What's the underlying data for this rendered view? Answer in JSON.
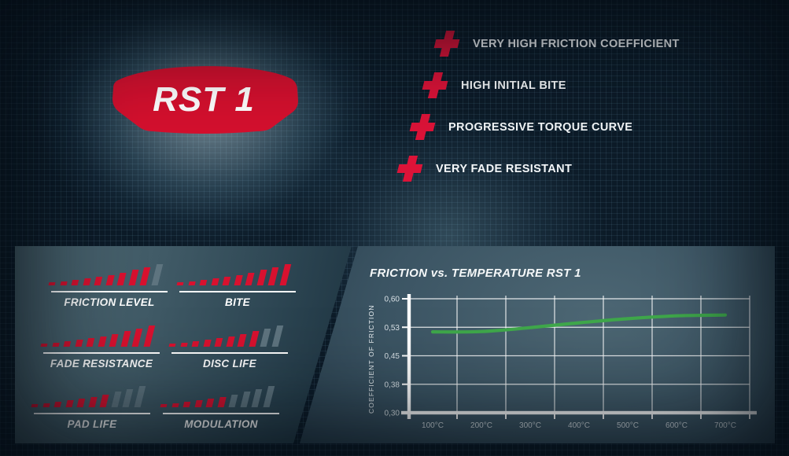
{
  "product": {
    "name": "RST 1"
  },
  "features": [
    {
      "icon": "plus-icon",
      "label": "VERY HIGH FRICTION COEFFICIENT"
    },
    {
      "icon": "plus-icon",
      "label": "HIGH INITIAL BITE"
    },
    {
      "icon": "plus-icon",
      "label": "PROGRESSIVE TORQUE CURVE"
    },
    {
      "icon": "plus-icon",
      "label": "VERY FADE RESISTANT"
    }
  ],
  "ratings": {
    "max": 10,
    "items": [
      {
        "label": "FRICTION LEVEL",
        "value": 9
      },
      {
        "label": "BITE",
        "value": 10
      },
      {
        "label": "FADE RESISTANCE",
        "value": 10
      },
      {
        "label": "DISC LIFE",
        "value": 8
      },
      {
        "label": "PAD LIFE",
        "value": 7
      },
      {
        "label": "MODULATION",
        "value": 6
      }
    ]
  },
  "chart_data": {
    "type": "line",
    "title": "FRICTION vs. TEMPERATURE RST 1",
    "ylabel": "COEFFICIENT OF FRICTION",
    "xlabel": "",
    "x": [
      100,
      200,
      300,
      400,
      500,
      600,
      700
    ],
    "x_tick_labels": [
      "100°C",
      "200°C",
      "300°C",
      "400°C",
      "500°C",
      "600°C",
      "700°C"
    ],
    "series": [
      {
        "name": "RST 1",
        "color": "#3fa84b",
        "values": [
          0.517,
          0.518,
          0.529,
          0.541,
          0.551,
          0.558,
          0.56
        ]
      }
    ],
    "ylim": [
      0.3,
      0.6
    ],
    "y_ticks": [
      0.3,
      0.38,
      0.45,
      0.53,
      0.6
    ],
    "y_tick_labels": [
      "0,30",
      "0,38",
      "0,45",
      "0,53",
      "0,60"
    ],
    "grid": true,
    "legend": "none"
  },
  "colors": {
    "accent_red": "#d9122f",
    "plus_red": "#dc1338",
    "line_green": "#3fa84b",
    "bar_inactive": "#5e747f",
    "panel_slate": "#3d5763",
    "background_navy": "#0c1b28",
    "text_white": "#f5f8f9"
  }
}
